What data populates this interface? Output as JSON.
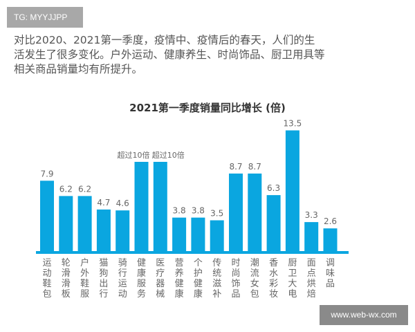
{
  "watermark_top": "TG: MYYJJPP",
  "intro_text": "对比2020、2021第一季度，疫情中、疫情后的春天，人们的生活发生了很多变化。户外运动、健康养生、时尚饰品、厨卫用具等相关商品销量均有所提升。",
  "watermark_bottom": "www.web-wx.com",
  "chart_data": {
    "type": "bar",
    "title": "2021第一季度销量同比增长 (倍)",
    "categories": [
      "运动鞋包",
      "轮滑滑板",
      "户外鞋服",
      "猫狗出行",
      "骑行运动",
      "健康服务",
      "医疗器械",
      "营养健康",
      "个护健康",
      "传统滋补",
      "时尚饰品",
      "潮流女包",
      "香水彩妆",
      "厨卫大电",
      "面点烘焙",
      "调味品"
    ],
    "values": [
      7.9,
      6.2,
      6.2,
      4.7,
      4.6,
      null,
      null,
      3.8,
      3.8,
      3.5,
      8.7,
      8.7,
      6.3,
      13.5,
      3.3,
      2.6
    ],
    "data_labels": [
      "7.9",
      "6.2",
      "6.2",
      "4.7",
      "4.6",
      "超过10倍",
      "超过10倍",
      "3.8",
      "3.8",
      "3.5",
      "8.7",
      "8.7",
      "6.3",
      "13.5",
      "3.3",
      "2.6"
    ],
    "capped_value": 10,
    "ylim": [
      0,
      14
    ],
    "xlabel": "",
    "ylabel": "",
    "grid": false,
    "bar_color": "#0aa6e0",
    "axis_color": "#0aa6e0"
  }
}
